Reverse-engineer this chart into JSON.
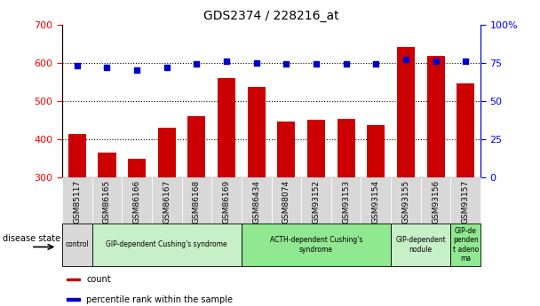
{
  "title": "GDS2374 / 228216_at",
  "samples": [
    "GSM85117",
    "GSM86165",
    "GSM86166",
    "GSM86167",
    "GSM86168",
    "GSM86169",
    "GSM86434",
    "GSM88074",
    "GSM93152",
    "GSM93153",
    "GSM93154",
    "GSM93155",
    "GSM93156",
    "GSM93157"
  ],
  "counts": [
    415,
    365,
    350,
    430,
    460,
    560,
    537,
    447,
    450,
    453,
    437,
    642,
    618,
    547
  ],
  "percentiles": [
    73,
    72,
    70,
    72,
    74,
    76,
    75,
    74,
    74,
    74,
    74,
    77,
    76,
    76
  ],
  "bar_color": "#cc0000",
  "dot_color": "#0000cc",
  "ymin": 300,
  "ymax": 700,
  "yticks": [
    300,
    400,
    500,
    600,
    700
  ],
  "y2min": 0,
  "y2max": 100,
  "y2ticks": [
    0,
    25,
    50,
    75,
    100
  ],
  "y2ticklabels": [
    "0",
    "25",
    "50",
    "75",
    "100%"
  ],
  "groups": [
    {
      "label": "control",
      "start": 0,
      "end": 1,
      "color": "#d8d8d8"
    },
    {
      "label": "GIP-dependent Cushing's syndrome",
      "start": 1,
      "end": 6,
      "color": "#c8f0c8"
    },
    {
      "label": "ACTH-dependent Cushing's\nsyndrome",
      "start": 6,
      "end": 11,
      "color": "#90e890"
    },
    {
      "label": "GIP-dependent\nnodule",
      "start": 11,
      "end": 13,
      "color": "#c8f0c8"
    },
    {
      "label": "GIP-de\npenden\nt adeno\nma",
      "start": 13,
      "end": 14,
      "color": "#90e890"
    }
  ],
  "disease_state_label": "disease state",
  "legend_items": [
    {
      "label": "count",
      "color": "#cc0000"
    },
    {
      "label": "percentile rank within the sample",
      "color": "#0000cc"
    }
  ],
  "bg_color": "#ffffff"
}
